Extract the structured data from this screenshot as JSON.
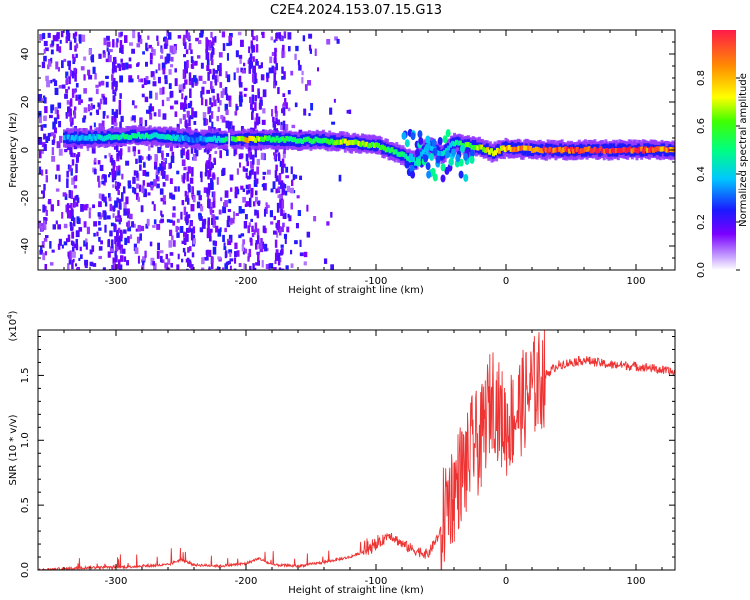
{
  "title": "C2E4.2024.153.07.15.G13",
  "colors": {
    "snr_line": "#ee3333",
    "spectrogram_low": "#7a00ff",
    "spectrogram_high": "#ff1a4a"
  },
  "chart_data": [
    {
      "type": "heatmap",
      "xlabel": "Height of straight line (km)",
      "ylabel": "Frequency (Hz)",
      "xlim": [
        -360,
        130
      ],
      "ylim": [
        -50,
        50
      ],
      "x_ticks": [
        -300,
        -200,
        -100,
        0,
        100
      ],
      "x_tick_labels": [
        "-300",
        "-200",
        "-100",
        "0",
        "100"
      ],
      "y_ticks": [
        -40,
        -20,
        0,
        20,
        40
      ],
      "y_tick_labels": [
        "-40",
        "-20",
        "0",
        "20",
        "40"
      ],
      "grid": false,
      "colorbar": {
        "label": "Normalized spectral amplitude",
        "range": [
          0,
          1
        ],
        "ticks": [
          0.0,
          0.2,
          0.4,
          0.6,
          0.8
        ],
        "tick_labels": [
          "0.0",
          "0.2",
          "0.4",
          "0.6",
          "0.8"
        ],
        "colormap": "rainbow (violet to red)"
      },
      "ridge": {
        "x": [
          -340,
          -320,
          -300,
          -280,
          -260,
          -240,
          -220,
          -200,
          -180,
          -160,
          -140,
          -120,
          -100,
          -90,
          -80,
          -70,
          -60,
          -50,
          -40,
          -30,
          -20,
          -10,
          0,
          20,
          40,
          60,
          80,
          100,
          120,
          130
        ],
        "y": [
          5,
          5,
          5.5,
          6,
          5.5,
          4.5,
          4.5,
          4.5,
          4.5,
          4,
          4,
          3,
          2,
          0,
          -2,
          -5,
          2,
          -2,
          3,
          2,
          1,
          -1,
          1,
          0,
          0,
          0,
          0,
          0,
          0,
          0
        ],
        "amplitude": [
          0.35,
          0.4,
          0.5,
          0.5,
          0.45,
          0.3,
          0.45,
          0.8,
          0.55,
          0.55,
          0.55,
          0.75,
          0.6,
          0.55,
          0.5,
          0.45,
          0.35,
          0.4,
          0.45,
          0.6,
          0.7,
          0.75,
          0.8,
          0.9,
          0.95,
          0.98,
          1.0,
          0.95,
          0.9,
          0.9
        ]
      }
    },
    {
      "type": "line",
      "xlabel": "Height of straight line (km)",
      "ylabel": "SNR (10 * v/v)",
      "y_multiplier": "(x10^4)",
      "xlim": [
        -360,
        130
      ],
      "ylim": [
        0,
        1.85
      ],
      "x_ticks": [
        -300,
        -200,
        -100,
        0,
        100
      ],
      "x_tick_labels": [
        "-300",
        "-200",
        "-100",
        "0",
        "100"
      ],
      "y_ticks": [
        0.0,
        0.5,
        1.0,
        1.5
      ],
      "y_tick_labels": [
        "0.0",
        "0.5",
        "1.0",
        "1.5"
      ],
      "grid": false,
      "series": [
        {
          "x": [
            -360,
            -340,
            -320,
            -300,
            -280,
            -260,
            -250,
            -240,
            -220,
            -200,
            -190,
            -180,
            -160,
            -140,
            -120,
            -100,
            -90,
            -80,
            -70,
            -60,
            -50,
            -45,
            -40,
            -35,
            -30,
            -25,
            -20,
            -15,
            -10,
            -5,
            0,
            10,
            20,
            30,
            40,
            50,
            60,
            70,
            80,
            90,
            100,
            110,
            120,
            130
          ],
          "values": [
            0.0,
            0.01,
            0.02,
            0.02,
            0.03,
            0.04,
            0.08,
            0.04,
            0.03,
            0.05,
            0.09,
            0.04,
            0.03,
            0.06,
            0.1,
            0.18,
            0.28,
            0.2,
            0.15,
            0.12,
            0.3,
            0.55,
            0.6,
            0.75,
            0.8,
            1.0,
            0.95,
            1.2,
            1.35,
            1.2,
            1.1,
            1.25,
            1.4,
            1.5,
            1.58,
            1.6,
            1.62,
            1.6,
            1.58,
            1.58,
            1.57,
            1.56,
            1.54,
            1.52
          ]
        }
      ]
    }
  ]
}
